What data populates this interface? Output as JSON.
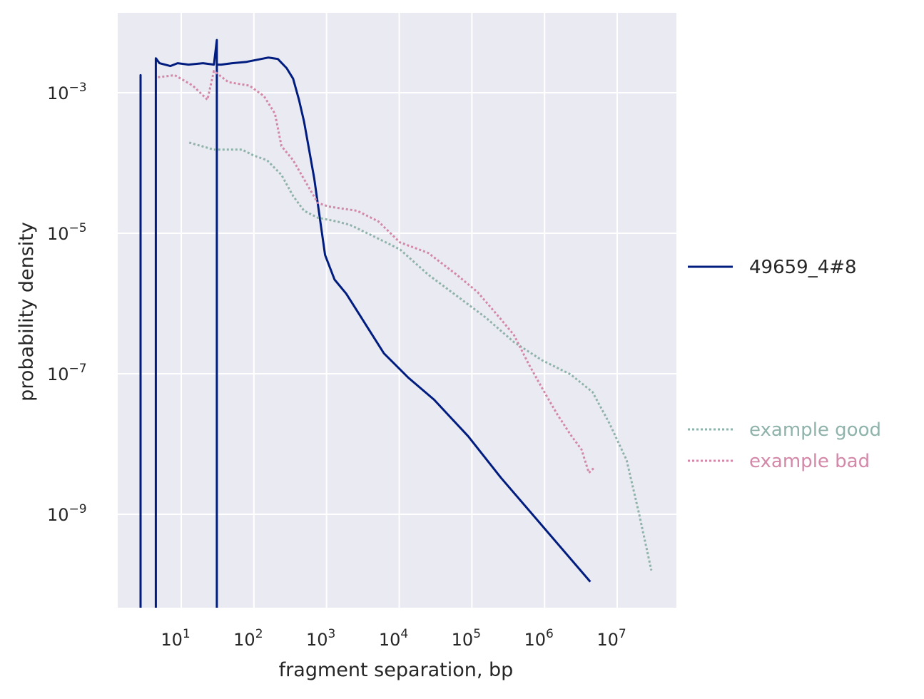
{
  "chart_data": {
    "type": "line",
    "xscale": "log",
    "yscale": "log",
    "xlabel": "fragment separation, bp",
    "ylabel": "probability density",
    "xlim_log10": [
      0.126,
      7.815
    ],
    "ylim_log10": [
      -10.33,
      -1.863
    ],
    "x_ticks": [
      {
        "base": "10",
        "exp": "1",
        "log": 1
      },
      {
        "base": "10",
        "exp": "2",
        "log": 2
      },
      {
        "base": "10",
        "exp": "3",
        "log": 3
      },
      {
        "base": "10",
        "exp": "4",
        "log": 4
      },
      {
        "base": "10",
        "exp": "5",
        "log": 5
      },
      {
        "base": "10",
        "exp": "6",
        "log": 6
      },
      {
        "base": "10",
        "exp": "7",
        "log": 7
      }
    ],
    "y_ticks": [
      {
        "base": "10",
        "exp": "−3",
        "log": -3
      },
      {
        "base": "10",
        "exp": "−5",
        "log": -5
      },
      {
        "base": "10",
        "exp": "−7",
        "log": -7
      },
      {
        "base": "10",
        "exp": "−9",
        "log": -9
      }
    ],
    "grid": true,
    "legend_placement": "right",
    "series": [
      {
        "name": "49659_4#8",
        "color": "#001c7f",
        "style": "solid",
        "log10_x": [
          0.44,
          0.44,
          0.44,
          0.65,
          0.65,
          0.7,
          0.85,
          0.95,
          1.1,
          1.3,
          1.45,
          1.49,
          1.49,
          1.49,
          1.55,
          1.7,
          1.9,
          2.1,
          2.2,
          2.33,
          2.45,
          2.54,
          2.62,
          2.69,
          2.76,
          2.83,
          2.9,
          2.98,
          3.11,
          3.27,
          3.79,
          4.13,
          4.48,
          4.95,
          5.4,
          6.63
        ],
        "log10_y": [
          -10.4,
          -2.75,
          -10.4,
          -10.4,
          -2.51,
          -2.58,
          -2.62,
          -2.58,
          -2.6,
          -2.58,
          -2.6,
          -2.25,
          -10.4,
          -2.6,
          -2.6,
          -2.58,
          -2.56,
          -2.52,
          -2.5,
          -2.52,
          -2.65,
          -2.8,
          -3.1,
          -3.41,
          -3.81,
          -4.22,
          -4.73,
          -5.31,
          -5.66,
          -5.86,
          -6.71,
          -7.06,
          -7.37,
          -7.89,
          -8.48,
          -9.96
        ]
      },
      {
        "name": "example good",
        "color": "#8fb3aa",
        "style": "dotted",
        "log10_x": [
          1.11,
          1.45,
          1.84,
          1.99,
          2.18,
          2.38,
          2.54,
          2.69,
          2.88,
          3.13,
          3.32,
          3.62,
          4.01,
          4.4,
          4.79,
          5.19,
          5.58,
          5.97,
          6.36,
          6.66,
          6.9,
          7.13,
          7.3,
          7.47
        ],
        "log10_y": [
          -3.71,
          -3.81,
          -3.81,
          -3.89,
          -3.96,
          -4.17,
          -4.47,
          -4.68,
          -4.78,
          -4.83,
          -4.88,
          -5.03,
          -5.23,
          -5.59,
          -5.89,
          -6.2,
          -6.55,
          -6.81,
          -7.01,
          -7.26,
          -7.72,
          -8.23,
          -8.99,
          -9.8
        ]
      },
      {
        "name": "example bad",
        "color": "#d488a8",
        "style": "dotted",
        "log10_x": [
          0.68,
          0.91,
          1.16,
          1.36,
          1.45,
          1.65,
          1.94,
          2.14,
          2.29,
          2.38,
          2.54,
          2.74,
          2.88,
          3.03,
          3.22,
          3.42,
          3.71,
          4.01,
          4.4,
          4.79,
          5.08,
          5.38,
          5.58,
          5.78,
          5.97,
          6.17,
          6.36,
          6.51,
          6.61,
          6.68
        ],
        "log10_y": [
          -2.78,
          -2.75,
          -2.9,
          -3.1,
          -2.69,
          -2.85,
          -2.9,
          -3.05,
          -3.3,
          -3.76,
          -3.96,
          -4.32,
          -4.57,
          -4.62,
          -4.65,
          -4.68,
          -4.83,
          -5.13,
          -5.28,
          -5.59,
          -5.84,
          -6.2,
          -6.45,
          -6.86,
          -7.21,
          -7.57,
          -7.87,
          -8.08,
          -8.41,
          -8.34
        ]
      }
    ]
  }
}
